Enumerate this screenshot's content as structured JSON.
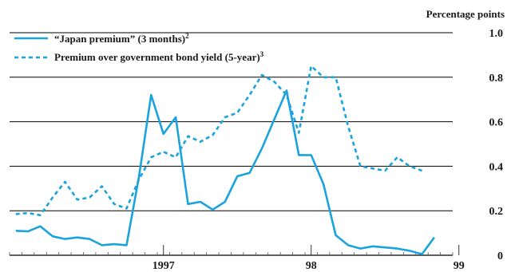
{
  "chart_data": {
    "type": "line",
    "title": "",
    "ylabel": "Percentage points",
    "xlabel": "",
    "ylim": [
      0,
      1.0
    ],
    "y_ticks": [
      0,
      0.2,
      0.4,
      0.6,
      0.8,
      1.0
    ],
    "y_tick_labels": [
      "0",
      "0.2",
      "0.4",
      "0.6",
      "0.8",
      "1.0"
    ],
    "x_start": "1996-07",
    "x_end": "1999-06",
    "x_tick_labels": [
      {
        "label": "1997",
        "at": "1997-07"
      },
      {
        "label": "98",
        "at": "1998-07"
      },
      {
        "label": "99",
        "at": "1999-07"
      }
    ],
    "grid": "horizontal",
    "legend_position": "top-left",
    "colors": {
      "accent": "#1aa3dc",
      "text": "#1a1a1a",
      "grid": "#000000"
    },
    "series": [
      {
        "name": "“Japan premium” (3 months)",
        "footnote": "2",
        "style": "solid",
        "x": [
          "1996-07",
          "1996-08",
          "1996-09",
          "1996-10",
          "1996-11",
          "1996-12",
          "1997-01",
          "1997-02",
          "1997-03",
          "1997-04",
          "1997-05",
          "1997-06",
          "1997-07",
          "1997-08",
          "1997-09",
          "1997-10",
          "1997-11",
          "1997-12",
          "1998-01",
          "1998-02",
          "1998-03",
          "1998-04",
          "1998-05",
          "1998-06",
          "1998-07",
          "1998-08",
          "1998-09",
          "1998-10",
          "1998-11",
          "1998-12",
          "1999-01",
          "1999-02",
          "1999-03",
          "1999-04",
          "1999-05",
          "1999-06"
        ],
        "values": [
          0.11,
          0.107,
          0.13,
          0.085,
          0.073,
          0.08,
          0.073,
          0.045,
          0.05,
          0.045,
          0.35,
          0.72,
          0.545,
          0.62,
          0.23,
          0.24,
          0.205,
          0.24,
          0.355,
          0.37,
          0.48,
          0.61,
          0.74,
          0.45,
          0.45,
          0.32,
          0.09,
          0.045,
          0.03,
          0.04,
          0.035,
          0.03,
          0.02,
          0.005,
          0.08,
          null
        ]
      },
      {
        "name": "Premium over government bond yield (5-year)",
        "footnote": "3",
        "style": "dashed",
        "x": [
          "1996-07",
          "1996-08",
          "1996-09",
          "1996-10",
          "1996-11",
          "1996-12",
          "1997-01",
          "1997-02",
          "1997-03",
          "1997-04",
          "1997-05",
          "1997-06",
          "1997-07",
          "1997-08",
          "1997-09",
          "1997-10",
          "1997-11",
          "1997-12",
          "1998-01",
          "1998-02",
          "1998-03",
          "1998-04",
          "1998-05",
          "1998-06",
          "1998-07",
          "1998-08",
          "1998-09",
          "1998-10",
          "1998-11",
          "1998-12",
          "1999-01",
          "1999-02",
          "1999-03",
          "1999-04",
          "1999-05",
          "1999-06"
        ],
        "values": [
          0.185,
          0.19,
          0.18,
          0.26,
          0.33,
          0.25,
          0.26,
          0.31,
          0.23,
          0.21,
          0.34,
          0.44,
          0.465,
          0.44,
          0.535,
          0.51,
          0.54,
          0.62,
          0.64,
          0.72,
          0.81,
          0.78,
          0.72,
          0.55,
          0.85,
          0.8,
          0.8,
          0.58,
          0.4,
          0.39,
          0.38,
          0.44,
          0.4,
          0.38,
          null,
          null
        ]
      }
    ]
  }
}
